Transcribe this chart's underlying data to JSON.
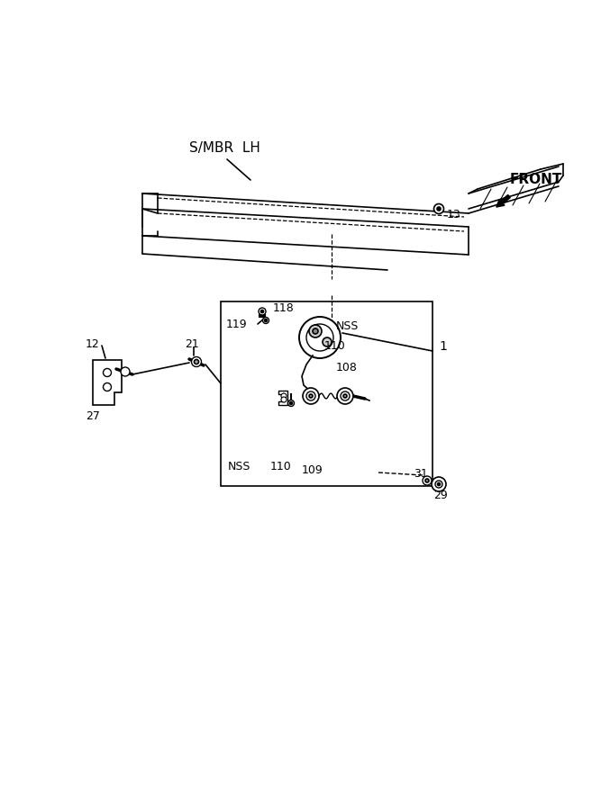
{
  "bg_color": "#ffffff",
  "line_color": "#000000",
  "labels": {
    "SMBR_LH": "S/MBR  LH",
    "FRONT": "FRONT",
    "num_1": "1",
    "num_12": "12",
    "num_13": "13",
    "num_21": "21",
    "num_27": "27",
    "num_29": "29",
    "num_31": "31",
    "num_108": "108",
    "num_109": "109",
    "num_110a": "110",
    "num_110b": "110",
    "num_118": "118",
    "num_119": "119",
    "NSS_top": "NSS",
    "NSS_bot": "NSS"
  },
  "figsize": [
    6.67,
    9.0
  ],
  "dpi": 100
}
